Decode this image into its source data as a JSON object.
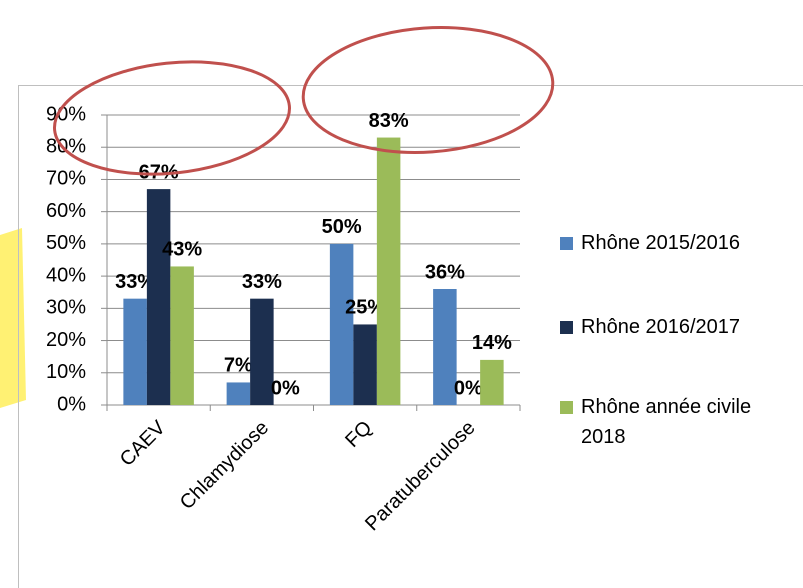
{
  "chart_data": {
    "type": "bar",
    "categories": [
      "CAEV",
      "Chlamydiose",
      "FQ",
      "Paratuberculose"
    ],
    "series": [
      {
        "name": "Rhône 2015/2016",
        "color": "#4f81bd",
        "values": [
          33,
          7,
          50,
          36
        ],
        "value_labels": [
          "33%",
          "7%",
          "50%",
          "36%"
        ]
      },
      {
        "name": "Rhône 2016/2017",
        "color": "#1c2f4f",
        "values": [
          67,
          33,
          25,
          0
        ],
        "value_labels": [
          "67%",
          "33%",
          "25%",
          "0%"
        ]
      },
      {
        "name": "Rhône année civile 2018",
        "color": "#9bbb59",
        "values": [
          43,
          0,
          83,
          14
        ],
        "value_labels": [
          "43%",
          "0%",
          "83%",
          "14%"
        ]
      }
    ],
    "ylim": [
      0,
      90
    ],
    "yticks": [
      {
        "value": 0,
        "label": "0%"
      },
      {
        "value": 10,
        "label": "10%"
      },
      {
        "value": 20,
        "label": "20%"
      },
      {
        "value": 30,
        "label": "30%"
      },
      {
        "value": 40,
        "label": "40%"
      },
      {
        "value": 50,
        "label": "50%"
      },
      {
        "value": 60,
        "label": "60%"
      },
      {
        "value": 70,
        "label": "70%"
      },
      {
        "value": 80,
        "label": "80%"
      },
      {
        "value": 90,
        "label": "90%"
      }
    ],
    "grid": true,
    "legend": "right"
  }
}
